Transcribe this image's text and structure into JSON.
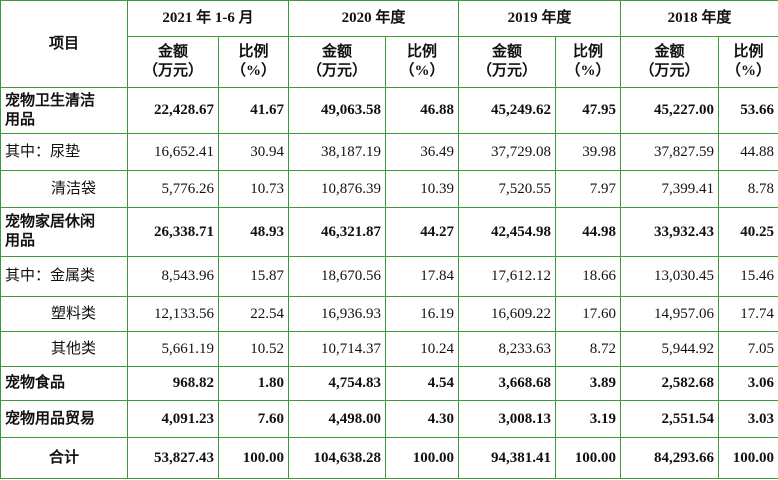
{
  "header": {
    "title": "项目",
    "periods": [
      "2021 年 1-6 月",
      "2020 年度",
      "2019 年度",
      "2018 年度"
    ],
    "amount_label": [
      "金额",
      "（万元）"
    ],
    "ratio_label": [
      "比例",
      "（%）"
    ]
  },
  "table": {
    "rows": [
      {
        "label": "宠物卫生清洁用品",
        "bold": true,
        "indent": 0,
        "cells": [
          "22,428.67",
          "41.67",
          "49,063.58",
          "46.88",
          "45,249.62",
          "47.95",
          "45,227.00",
          "53.66"
        ]
      },
      {
        "label": "其中：尿垫",
        "bold": false,
        "indent": 0,
        "cells": [
          "16,652.41",
          "30.94",
          "38,187.19",
          "36.49",
          "37,729.08",
          "39.98",
          "37,827.59",
          "44.88"
        ]
      },
      {
        "label": "清洁袋",
        "bold": false,
        "indent": 1,
        "cells": [
          "5,776.26",
          "10.73",
          "10,876.39",
          "10.39",
          "7,520.55",
          "7.97",
          "7,399.41",
          "8.78"
        ]
      },
      {
        "label": "宠物家居休闲用品",
        "bold": true,
        "indent": 0,
        "cells": [
          "26,338.71",
          "48.93",
          "46,321.87",
          "44.27",
          "42,454.98",
          "44.98",
          "33,932.43",
          "40.25"
        ]
      },
      {
        "label": "其中：金属类",
        "bold": false,
        "indent": 0,
        "cells": [
          "8,543.96",
          "15.87",
          "18,670.56",
          "17.84",
          "17,612.12",
          "18.66",
          "13,030.45",
          "15.46"
        ]
      },
      {
        "label": "塑料类",
        "bold": false,
        "indent": 1,
        "cells": [
          "12,133.56",
          "22.54",
          "16,936.93",
          "16.19",
          "16,609.22",
          "17.60",
          "14,957.06",
          "17.74"
        ]
      },
      {
        "label": "其他类",
        "bold": false,
        "indent": 1,
        "cells": [
          "5,661.19",
          "10.52",
          "10,714.37",
          "10.24",
          "8,233.63",
          "8.72",
          "5,944.92",
          "7.05"
        ]
      },
      {
        "label": "宠物食品",
        "bold": true,
        "indent": 0,
        "cells": [
          "968.82",
          "1.80",
          "4,754.83",
          "4.54",
          "3,668.68",
          "3.89",
          "2,582.68",
          "3.06"
        ]
      },
      {
        "label": "宠物用品贸易",
        "bold": true,
        "indent": 0,
        "cells": [
          "4,091.23",
          "7.60",
          "4,498.00",
          "4.30",
          "3,008.13",
          "3.19",
          "2,551.54",
          "3.03"
        ]
      },
      {
        "label": "合计",
        "bold": true,
        "indent": 0,
        "cells": [
          "53,827.43",
          "100.00",
          "104,638.28",
          "100.00",
          "94,381.41",
          "100.00",
          "84,293.66",
          "100.00"
        ]
      }
    ]
  }
}
